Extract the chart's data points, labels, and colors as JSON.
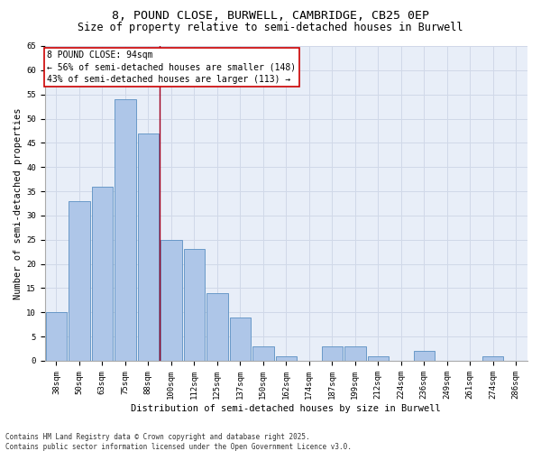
{
  "title": "8, POUND CLOSE, BURWELL, CAMBRIDGE, CB25 0EP",
  "subtitle": "Size of property relative to semi-detached houses in Burwell",
  "xlabel": "Distribution of semi-detached houses by size in Burwell",
  "ylabel": "Number of semi-detached properties",
  "categories": [
    "38sqm",
    "50sqm",
    "63sqm",
    "75sqm",
    "88sqm",
    "100sqm",
    "112sqm",
    "125sqm",
    "137sqm",
    "150sqm",
    "162sqm",
    "174sqm",
    "187sqm",
    "199sqm",
    "212sqm",
    "224sqm",
    "236sqm",
    "249sqm",
    "261sqm",
    "274sqm",
    "286sqm"
  ],
  "values": [
    10,
    33,
    36,
    54,
    47,
    25,
    23,
    14,
    9,
    3,
    1,
    0,
    3,
    3,
    1,
    0,
    2,
    0,
    0,
    1,
    0
  ],
  "bar_color": "#aec6e8",
  "bar_edge_color": "#5a8fc2",
  "bar_edge_width": 0.6,
  "vline_color": "#a0001e",
  "annotation_title": "8 POUND CLOSE: 94sqm",
  "annotation_line1": "← 56% of semi-detached houses are smaller (148)",
  "annotation_line2": "43% of semi-detached houses are larger (113) →",
  "annotation_box_color": "#ffffff",
  "annotation_box_edge": "#cc0000",
  "ylim": [
    0,
    65
  ],
  "yticks": [
    0,
    5,
    10,
    15,
    20,
    25,
    30,
    35,
    40,
    45,
    50,
    55,
    60,
    65
  ],
  "grid_color": "#d0d8e8",
  "background_color": "#e8eef8",
  "footer_line1": "Contains HM Land Registry data © Crown copyright and database right 2025.",
  "footer_line2": "Contains public sector information licensed under the Open Government Licence v3.0.",
  "title_fontsize": 9.5,
  "subtitle_fontsize": 8.5,
  "axis_label_fontsize": 7.5,
  "tick_fontsize": 6.5,
  "annotation_fontsize": 7.0,
  "footer_fontsize": 5.5
}
